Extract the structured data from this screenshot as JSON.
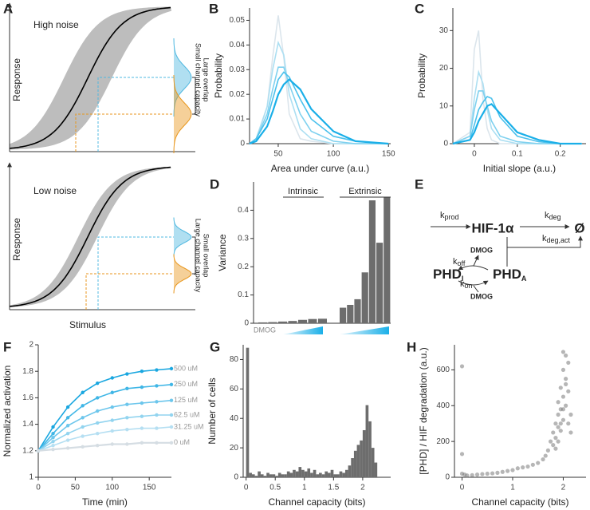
{
  "panel_a": {
    "panel": "A",
    "top_title": "High noise",
    "top_ylabel": "Response",
    "top_note1": "Large overlap",
    "top_note2": "Small channel capacity",
    "bottom_title": "Low noise",
    "bottom_ylabel": "Response",
    "bottom_note1": "Small overlap",
    "bottom_note2": "Large channel capacity",
    "xlabel": "Stimulus"
  },
  "panel_e": {
    "panel": "E",
    "hif": "HIF-1α",
    "sink": "Ø",
    "phd_i": "PHD",
    "phd_i_sub": "I",
    "phd_a": "PHD",
    "phd_a_sub": "A",
    "dmog_top": "DMOG",
    "dmog_bottom": "DMOG",
    "k": "k",
    "prod": "prod",
    "deg": "deg",
    "deg_act": "deg,act",
    "off": "off",
    "on": "on"
  },
  "chart_data": [
    {
      "type": "line",
      "panel": "B",
      "xlabel": "Area under curve (a.u.)",
      "ylabel": "Probability",
      "xlim": [
        24,
        152
      ],
      "xticks": [
        50,
        100,
        150
      ],
      "ylim": [
        0,
        0.055
      ],
      "yticks": [
        0,
        0.01,
        0.02,
        0.03,
        0.04,
        0.05
      ],
      "x": [
        24,
        30,
        40,
        45,
        50,
        55,
        60,
        70,
        80,
        100,
        120,
        150
      ],
      "series": [
        {
          "color": "#dbe5ec",
          "values": [
            0,
            0.001,
            0.015,
            0.035,
            0.052,
            0.035,
            0.012,
            0.002,
            0.001,
            0,
            0,
            0
          ]
        },
        {
          "color": "#acdff2",
          "values": [
            0,
            0.002,
            0.015,
            0.03,
            0.041,
            0.036,
            0.02,
            0.006,
            0.002,
            0,
            0,
            0
          ]
        },
        {
          "color": "#7fd1ef",
          "values": [
            0,
            0.002,
            0.012,
            0.022,
            0.031,
            0.031,
            0.024,
            0.012,
            0.005,
            0.001,
            0,
            0
          ]
        },
        {
          "color": "#4cc1ec",
          "values": [
            0,
            0.002,
            0.01,
            0.018,
            0.026,
            0.029,
            0.027,
            0.018,
            0.01,
            0.003,
            0.001,
            0
          ]
        },
        {
          "color": "#1aafe8",
          "values": [
            0,
            0.001,
            0.007,
            0.013,
            0.02,
            0.024,
            0.026,
            0.022,
            0.014,
            0.005,
            0.001,
            0
          ]
        }
      ]
    },
    {
      "type": "line",
      "panel": "C",
      "xlabel": "Initial slope (a.u.)",
      "ylabel": "Probability",
      "xlim": [
        -0.05,
        0.26
      ],
      "xticks": [
        0,
        0.1,
        0.2
      ],
      "ylim": [
        0,
        36
      ],
      "yticks": [
        0,
        10,
        20,
        30
      ],
      "x": [
        -0.05,
        -0.01,
        0,
        0.01,
        0.02,
        0.03,
        0.04,
        0.06,
        0.1,
        0.15,
        0.2,
        0.25
      ],
      "series": [
        {
          "color": "#dbe5ec",
          "values": [
            0,
            3,
            25,
            30,
            12,
            4,
            1,
            0,
            0,
            0,
            0,
            0
          ]
        },
        {
          "color": "#acdff2",
          "values": [
            0,
            2,
            12,
            19,
            16,
            9,
            4,
            1,
            0,
            0,
            0,
            0
          ]
        },
        {
          "color": "#7fd1ef",
          "values": [
            0,
            2,
            9,
            14,
            14,
            10,
            6,
            2,
            0.5,
            0,
            0,
            0
          ]
        },
        {
          "color": "#4cc1ec",
          "values": [
            0,
            1,
            5,
            9,
            11,
            12.5,
            12,
            7,
            2,
            0.5,
            0,
            0
          ]
        },
        {
          "color": "#1aafe8",
          "values": [
            0,
            1,
            3,
            6,
            8,
            10,
            10.5,
            8,
            3,
            1,
            0,
            0
          ]
        }
      ]
    },
    {
      "type": "bar",
      "panel": "D",
      "ylabel": "Variance",
      "ylim": [
        0,
        0.5
      ],
      "yticks": [
        0,
        0.1,
        0.2,
        0.3,
        0.4
      ],
      "color": "#6d6d6d",
      "annotations": [
        "Intrinsic",
        "Extrinsic",
        "DMOG"
      ],
      "categories": [
        null,
        null,
        null,
        null,
        null,
        null,
        null,
        null,
        null,
        null,
        null,
        null,
        null,
        null
      ],
      "values": [
        0.003,
        0.004,
        0.006,
        0.008,
        0.012,
        0.015,
        0.016,
        0.055,
        0.065,
        0.085,
        0.18,
        0.435,
        0.285,
        0.445
      ]
    },
    {
      "type": "line",
      "panel": "F",
      "markers": true,
      "xlabel": "Time (min)",
      "ylabel": "Normalized activation",
      "xlim": [
        0,
        180
      ],
      "xticks": [
        0,
        50,
        100,
        150
      ],
      "ylim": [
        1,
        2
      ],
      "yticks": [
        1,
        1.2,
        1.4,
        1.6,
        1.8,
        2
      ],
      "x": [
        0,
        20,
        40,
        60,
        80,
        100,
        120,
        140,
        160,
        180
      ],
      "series": [
        {
          "name": "500 uM",
          "color": "#1aa7e0",
          "values": [
            1.2,
            1.38,
            1.53,
            1.64,
            1.71,
            1.75,
            1.78,
            1.8,
            1.81,
            1.82
          ]
        },
        {
          "name": "250 uM",
          "color": "#3fb6e6",
          "values": [
            1.2,
            1.33,
            1.45,
            1.54,
            1.6,
            1.64,
            1.67,
            1.68,
            1.69,
            1.7
          ]
        },
        {
          "name": "125 uM",
          "color": "#6cc6ec",
          "values": [
            1.2,
            1.3,
            1.39,
            1.45,
            1.5,
            1.53,
            1.55,
            1.56,
            1.57,
            1.58
          ]
        },
        {
          "name": "62.5 uM",
          "color": "#92d4ef",
          "values": [
            1.2,
            1.27,
            1.33,
            1.38,
            1.41,
            1.43,
            1.45,
            1.46,
            1.47,
            1.47
          ]
        },
        {
          "name": "31.25 uM",
          "color": "#b5dff2",
          "values": [
            1.2,
            1.24,
            1.28,
            1.31,
            1.33,
            1.35,
            1.36,
            1.37,
            1.37,
            1.38
          ]
        },
        {
          "name": "0 uM",
          "color": "#d5dde3",
          "values": [
            1.2,
            1.21,
            1.22,
            1.23,
            1.24,
            1.25,
            1.25,
            1.26,
            1.26,
            1.26
          ]
        }
      ]
    },
    {
      "type": "histogram",
      "panel": "G",
      "xlabel": "Channel capacity (bits)",
      "ylabel": "Number of cells",
      "color": "#6d6d6d",
      "xlim": [
        -0.05,
        2.48
      ],
      "xticks": [
        0,
        0.5,
        1,
        1.5,
        2
      ],
      "ylim": [
        0,
        90
      ],
      "yticks": [
        0,
        20,
        40,
        60,
        80
      ],
      "bins": [
        0,
        0.05,
        0.1,
        0.15,
        0.2,
        0.25,
        0.3,
        0.35,
        0.4,
        0.45,
        0.5,
        0.55,
        0.6,
        0.65,
        0.7,
        0.75,
        0.8,
        0.85,
        0.9,
        0.95,
        1,
        1.05,
        1.1,
        1.15,
        1.2,
        1.25,
        1.3,
        1.35,
        1.4,
        1.45,
        1.5,
        1.55,
        1.6,
        1.65,
        1.7,
        1.75,
        1.8,
        1.85,
        1.9,
        1.95,
        2,
        2.05,
        2.1,
        2.15,
        2.2,
        2.25
      ],
      "counts": [
        88,
        3,
        2,
        1,
        4,
        2,
        1,
        3,
        2,
        2,
        1,
        3,
        2,
        2,
        4,
        3,
        5,
        4,
        7,
        5,
        4,
        6,
        3,
        5,
        2,
        3,
        2,
        4,
        3,
        5,
        2,
        2,
        4,
        3,
        5,
        8,
        13,
        18,
        22,
        25,
        32,
        49,
        38,
        20,
        10
      ]
    },
    {
      "type": "scatter",
      "panel": "H",
      "xlabel": "Channel capacity (bits)",
      "ylabel": "[PHD] / HIF degradation (a.u.)",
      "color": "#6d6d6d",
      "xlim": [
        -0.15,
        2.45
      ],
      "xticks": [
        0,
        1,
        2
      ],
      "ylim": [
        0,
        740
      ],
      "yticks": [
        0,
        200,
        400,
        600
      ],
      "x": [
        0,
        0,
        0,
        0.05,
        0.1,
        0.2,
        0.3,
        0.4,
        0.5,
        0.6,
        0.7,
        0.8,
        0.9,
        1.0,
        1.1,
        1.2,
        1.3,
        1.4,
        1.5,
        1.6,
        1.65,
        1.7,
        1.75,
        1.8,
        1.8,
        1.85,
        1.85,
        1.9,
        1.9,
        1.9,
        1.95,
        1.95,
        1.95,
        2.0,
        2.0,
        2.0,
        2.0,
        2.05,
        2.05,
        2.05,
        2.1,
        2.1,
        2.1,
        2.15,
        2.15,
        1.85,
        1.9,
        2.0,
        2.05,
        1.95
      ],
      "values": [
        620,
        130,
        20,
        15,
        10,
        12,
        15,
        18,
        20,
        22,
        25,
        30,
        35,
        40,
        50,
        55,
        60,
        70,
        80,
        100,
        120,
        150,
        200,
        180,
        250,
        300,
        220,
        350,
        280,
        420,
        380,
        500,
        260,
        450,
        600,
        320,
        700,
        550,
        400,
        680,
        480,
        300,
        640,
        350,
        250,
        160,
        200,
        380,
        520,
        300
      ]
    }
  ]
}
